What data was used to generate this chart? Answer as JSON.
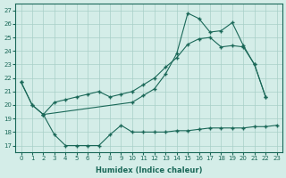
{
  "xlabel": "Humidex (Indice chaleur)",
  "bg_color": "#d4ede8",
  "grid_color": "#a8cfc8",
  "line_color": "#1a6858",
  "xlim": [
    -0.5,
    23.5
  ],
  "ylim": [
    16.5,
    27.5
  ],
  "yticks": [
    17,
    18,
    19,
    20,
    21,
    22,
    23,
    24,
    25,
    26,
    27
  ],
  "xticks": [
    0,
    1,
    2,
    3,
    4,
    5,
    6,
    7,
    8,
    9,
    10,
    11,
    12,
    13,
    14,
    15,
    16,
    17,
    18,
    19,
    20,
    21,
    22,
    23
  ],
  "line1_x": [
    0,
    1,
    2,
    10,
    11,
    12,
    13,
    14,
    15,
    16,
    17,
    18,
    19,
    20,
    21,
    22
  ],
  "line1_y": [
    21.7,
    20.0,
    19.3,
    20.2,
    20.7,
    21.2,
    22.3,
    23.8,
    26.8,
    26.4,
    25.4,
    25.5,
    26.1,
    24.4,
    23.0,
    20.6
  ],
  "line2_x": [
    0,
    1,
    2,
    3,
    4,
    5,
    6,
    7,
    8,
    9,
    10,
    11,
    12,
    13,
    14,
    15,
    16,
    17,
    18,
    19,
    20,
    21,
    22
  ],
  "line2_y": [
    21.7,
    20.0,
    19.3,
    20.2,
    20.4,
    20.6,
    20.8,
    21.0,
    20.6,
    20.8,
    21.0,
    21.5,
    22.0,
    22.8,
    23.5,
    24.5,
    24.9,
    25.0,
    24.3,
    24.4,
    24.3,
    23.0,
    20.6
  ],
  "line3_x": [
    2,
    3,
    4,
    5,
    6,
    7,
    8,
    9,
    10,
    11,
    12,
    13,
    14,
    15,
    16,
    17,
    18,
    19,
    20,
    21,
    22,
    23
  ],
  "line3_y": [
    19.3,
    17.8,
    17.0,
    17.0,
    17.0,
    17.0,
    17.8,
    18.5,
    18.0,
    18.0,
    18.0,
    18.0,
    18.1,
    18.1,
    18.2,
    18.3,
    18.3,
    18.3,
    18.3,
    18.4,
    18.4,
    18.5
  ]
}
